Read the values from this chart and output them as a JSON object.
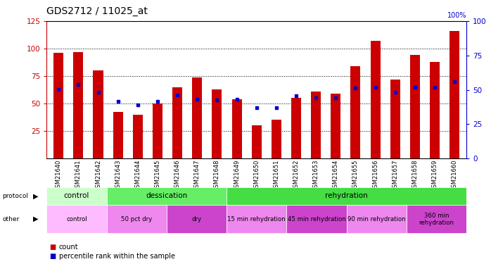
{
  "title": "GDS2712 / 11025_at",
  "samples": [
    "GSM21640",
    "GSM21641",
    "GSM21642",
    "GSM21643",
    "GSM21644",
    "GSM21645",
    "GSM21646",
    "GSM21647",
    "GSM21648",
    "GSM21649",
    "GSM21650",
    "GSM21651",
    "GSM21652",
    "GSM21653",
    "GSM21654",
    "GSM21655",
    "GSM21656",
    "GSM21657",
    "GSM21658",
    "GSM21659",
    "GSM21660"
  ],
  "count_values": [
    96,
    97,
    80,
    42,
    40,
    50,
    65,
    74,
    63,
    54,
    30,
    35,
    55,
    61,
    59,
    84,
    107,
    72,
    94,
    88,
    116
  ],
  "percentile_values": [
    63,
    67,
    60,
    52,
    49,
    52,
    58,
    54,
    53,
    54,
    46,
    46,
    57,
    55,
    55,
    64,
    65,
    60,
    65,
    65,
    70
  ],
  "ylim_left": [
    0,
    125
  ],
  "ylim_right": [
    0,
    100
  ],
  "yticks_left": [
    25,
    50,
    75,
    100,
    125
  ],
  "yticks_right": [
    0,
    25,
    50,
    75,
    100
  ],
  "bar_color": "#cc0000",
  "dot_color": "#0000cc",
  "bg_color": "#ffffff",
  "protocol_row": {
    "groups": [
      {
        "text": "control",
        "start": 0,
        "end": 3,
        "color": "#ccffcc"
      },
      {
        "text": "dessication",
        "start": 3,
        "end": 9,
        "color": "#66ee66"
      },
      {
        "text": "rehydration",
        "start": 9,
        "end": 21,
        "color": "#44dd44"
      }
    ]
  },
  "other_row": {
    "groups": [
      {
        "text": "control",
        "start": 0,
        "end": 3,
        "color": "#ffbbff"
      },
      {
        "text": "50 pct dry",
        "start": 3,
        "end": 6,
        "color": "#ee88ee"
      },
      {
        "text": "dry",
        "start": 6,
        "end": 9,
        "color": "#cc44cc"
      },
      {
        "text": "15 min rehydration",
        "start": 9,
        "end": 12,
        "color": "#ee88ee"
      },
      {
        "text": "45 min rehydration",
        "start": 12,
        "end": 15,
        "color": "#cc44cc"
      },
      {
        "text": "90 min rehydration",
        "start": 15,
        "end": 18,
        "color": "#ee88ee"
      },
      {
        "text": "360 min\nrehydration",
        "start": 18,
        "end": 21,
        "color": "#cc44cc"
      }
    ]
  },
  "legend_count_label": "count",
  "legend_percentile_label": "percentile rank within the sample",
  "right_axis_label": "100%",
  "tick_label_fontsize": 6.0,
  "title_fontsize": 10,
  "bar_width": 0.5
}
